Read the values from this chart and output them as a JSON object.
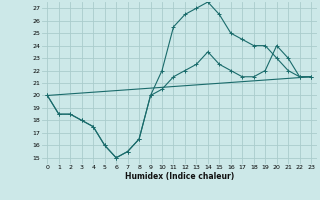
{
  "xlabel": "Humidex (Indice chaleur)",
  "bg_color": "#cce8e8",
  "grid_color": "#aacccc",
  "line_color": "#1a6b6b",
  "xlim": [
    -0.5,
    23.5
  ],
  "ylim": [
    14.5,
    27.5
  ],
  "xticks": [
    0,
    1,
    2,
    3,
    4,
    5,
    6,
    7,
    8,
    9,
    10,
    11,
    12,
    13,
    14,
    15,
    16,
    17,
    18,
    19,
    20,
    21,
    22,
    23
  ],
  "yticks": [
    15,
    16,
    17,
    18,
    19,
    20,
    21,
    22,
    23,
    24,
    25,
    26,
    27
  ],
  "series": [
    {
      "x": [
        0,
        1,
        2,
        3,
        4,
        5,
        6,
        7,
        8,
        9,
        10,
        11,
        12,
        13,
        14,
        15,
        16,
        17,
        18,
        19,
        20,
        21,
        22,
        23
      ],
      "y": [
        20.0,
        18.5,
        18.5,
        18.0,
        17.5,
        16.0,
        15.0,
        15.5,
        16.5,
        20.0,
        22.0,
        25.5,
        26.5,
        27.0,
        27.5,
        26.5,
        25.0,
        24.5,
        24.0,
        24.0,
        23.0,
        22.0,
        21.5,
        21.5
      ],
      "marker": true
    },
    {
      "x": [
        0,
        23
      ],
      "y": [
        20.0,
        21.5
      ],
      "marker": false
    },
    {
      "x": [
        0,
        1,
        2,
        3,
        4,
        5,
        6,
        7,
        8,
        9,
        10,
        11,
        12,
        13,
        14,
        15,
        16,
        17,
        18,
        19,
        20,
        21,
        22,
        23
      ],
      "y": [
        20.0,
        18.5,
        18.5,
        18.0,
        17.5,
        16.0,
        15.0,
        15.5,
        16.5,
        20.0,
        20.5,
        21.5,
        22.0,
        22.5,
        23.5,
        22.5,
        22.0,
        21.5,
        21.5,
        22.0,
        24.0,
        23.0,
        21.5,
        21.5
      ],
      "marker": true
    }
  ]
}
